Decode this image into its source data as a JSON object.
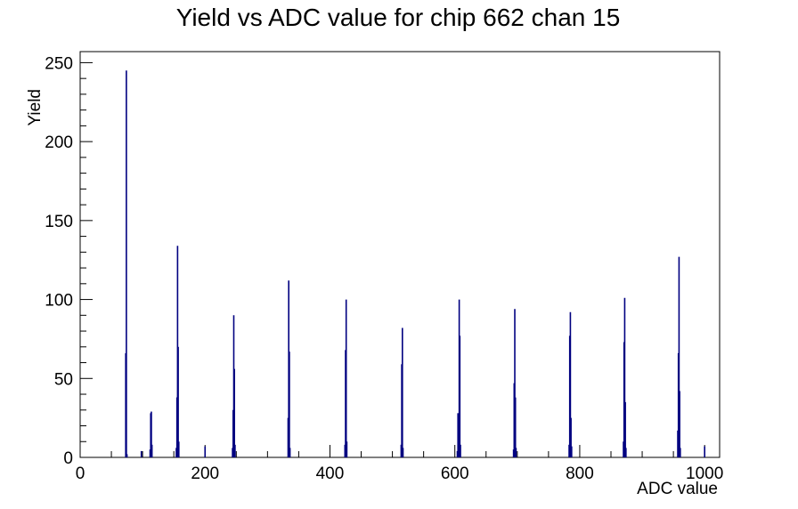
{
  "chart_data": {
    "type": "bar",
    "title": "Yield vs ADC value for chip 662 chan 15",
    "xlabel": "ADC value",
    "ylabel": "Yield",
    "xlim": [
      0,
      1024
    ],
    "ylim": [
      0,
      257
    ],
    "x_ticks": [
      0,
      200,
      400,
      600,
      800,
      1000
    ],
    "y_ticks": [
      0,
      50,
      100,
      150,
      200,
      250
    ],
    "grid": false,
    "line_color": "#000080",
    "series": [
      {
        "bins": [
          {
            "x": 73,
            "y": 66
          },
          {
            "x": 74,
            "y": 245
          },
          {
            "x": 75,
            "y": 2
          },
          {
            "x": 98,
            "y": 4
          },
          {
            "x": 112,
            "y": 5
          },
          {
            "x": 113,
            "y": 28
          },
          {
            "x": 114,
            "y": 29
          },
          {
            "x": 115,
            "y": 8
          },
          {
            "x": 154,
            "y": 6
          },
          {
            "x": 155,
            "y": 38
          },
          {
            "x": 156,
            "y": 134
          },
          {
            "x": 157,
            "y": 70
          },
          {
            "x": 158,
            "y": 10
          },
          {
            "x": 200,
            "y": 7
          },
          {
            "x": 244,
            "y": 6
          },
          {
            "x": 245,
            "y": 30
          },
          {
            "x": 246,
            "y": 90
          },
          {
            "x": 247,
            "y": 56
          },
          {
            "x": 248,
            "y": 8
          },
          {
            "x": 333,
            "y": 25
          },
          {
            "x": 334,
            "y": 112
          },
          {
            "x": 335,
            "y": 67
          },
          {
            "x": 336,
            "y": 6
          },
          {
            "x": 424,
            "y": 8
          },
          {
            "x": 425,
            "y": 68
          },
          {
            "x": 426,
            "y": 100
          },
          {
            "x": 427,
            "y": 10
          },
          {
            "x": 514,
            "y": 8
          },
          {
            "x": 515,
            "y": 59
          },
          {
            "x": 516,
            "y": 82
          },
          {
            "x": 517,
            "y": 6
          },
          {
            "x": 604,
            "y": 4
          },
          {
            "x": 605,
            "y": 28
          },
          {
            "x": 606,
            "y": 20
          },
          {
            "x": 607,
            "y": 100
          },
          {
            "x": 608,
            "y": 77
          },
          {
            "x": 609,
            "y": 8
          },
          {
            "x": 694,
            "y": 5
          },
          {
            "x": 695,
            "y": 47
          },
          {
            "x": 696,
            "y": 94
          },
          {
            "x": 697,
            "y": 38
          },
          {
            "x": 698,
            "y": 6
          },
          {
            "x": 783,
            "y": 8
          },
          {
            "x": 784,
            "y": 77
          },
          {
            "x": 785,
            "y": 92
          },
          {
            "x": 786,
            "y": 25
          },
          {
            "x": 787,
            "y": 7
          },
          {
            "x": 870,
            "y": 10
          },
          {
            "x": 871,
            "y": 73
          },
          {
            "x": 872,
            "y": 101
          },
          {
            "x": 873,
            "y": 35
          },
          {
            "x": 874,
            "y": 6
          },
          {
            "x": 957,
            "y": 17
          },
          {
            "x": 958,
            "y": 66
          },
          {
            "x": 959,
            "y": 127
          },
          {
            "x": 960,
            "y": 42
          },
          {
            "x": 961,
            "y": 6
          },
          {
            "x": 1000,
            "y": 7
          }
        ]
      }
    ]
  }
}
